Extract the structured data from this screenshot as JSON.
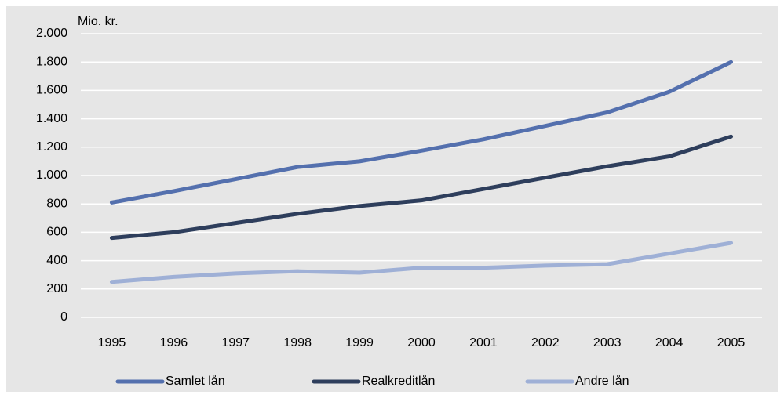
{
  "chart_data": {
    "type": "line",
    "y_label": "Mio. kr.",
    "categories": [
      "1995",
      "1996",
      "1997",
      "1998",
      "1999",
      "2000",
      "2001",
      "2002",
      "2003",
      "2004",
      "2005"
    ],
    "series": [
      {
        "name": "Samlet lån",
        "color": "#5470ae",
        "values": [
          810,
          890,
          975,
          1060,
          1100,
          1175,
          1255,
          1350,
          1445,
          1590,
          1800
        ]
      },
      {
        "name": "Realkreditlån",
        "color": "#2e3e5c",
        "values": [
          560,
          600,
          665,
          730,
          785,
          825,
          905,
          985,
          1065,
          1135,
          1275
        ]
      },
      {
        "name": "Andre lån",
        "color": "#9fb0d6",
        "values": [
          250,
          285,
          310,
          325,
          315,
          350,
          350,
          365,
          375,
          450,
          525
        ]
      }
    ],
    "ylim": [
      0,
      2000
    ],
    "yticks": [
      0,
      200,
      400,
      600,
      800,
      {
        "value": 1000,
        "label": "1.000"
      },
      {
        "value": 1200,
        "label": "1.200"
      },
      {
        "value": 1400,
        "label": "1.400"
      },
      {
        "value": 1600,
        "label": "1.600"
      },
      {
        "value": 1800,
        "label": "1.800"
      },
      {
        "value": 2000,
        "label": "2.000"
      }
    ],
    "grid": true
  }
}
